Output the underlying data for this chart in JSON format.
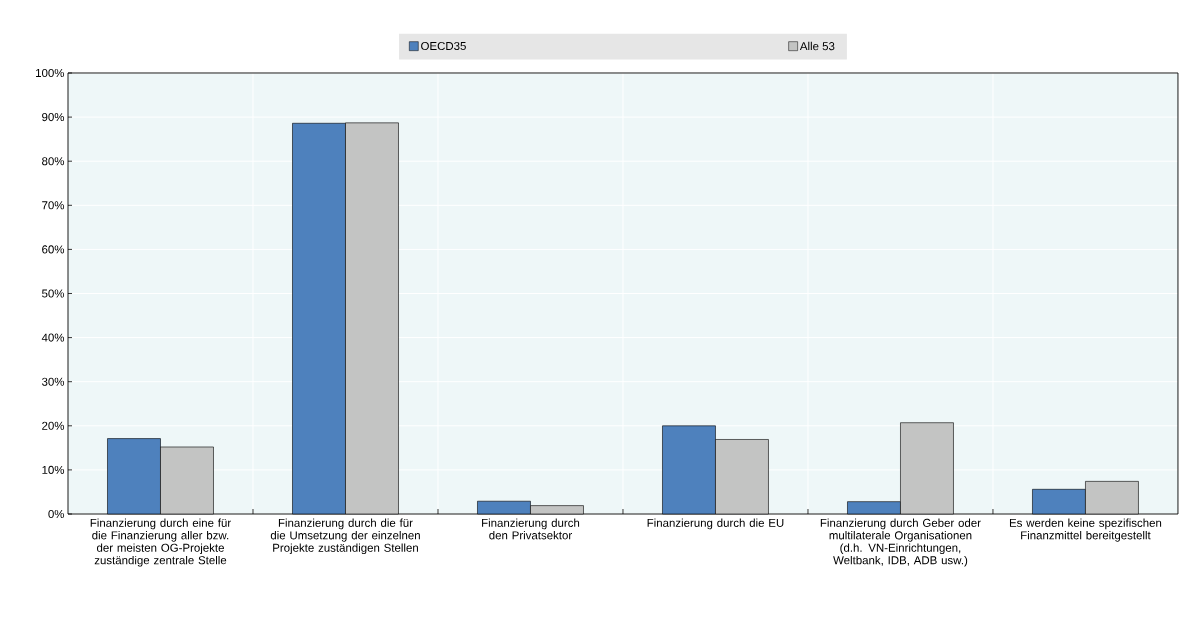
{
  "chart_data": {
    "type": "bar",
    "categories": [
      "Finanzierung durch eine für die Finanzierung aller bzw. der meisten OG-Projekte zuständige zentrale Stelle",
      "Finanzierung durch die für die Umsetzung der einzelnen Projekte zuständigen Stellen",
      "Finanzierung durch den Privatsektor",
      "Finanzierung durch die EU",
      "Finanzierung durch Geber oder multilaterale Organisationen (d.h. VN-Einrichtungen, Weltbank, IDB, ADB usw.)",
      "Es werden keine spezifischen Finanzmittel bereitgestellt"
    ],
    "series": [
      {
        "name": "OECD35",
        "color": "#4e81bd",
        "values": [
          17.1,
          88.6,
          2.9,
          20.0,
          2.8,
          5.6
        ]
      },
      {
        "name": "Alle 53",
        "color": "#c3c4c3",
        "values": [
          15.2,
          88.7,
          1.9,
          16.9,
          20.7,
          7.4
        ]
      }
    ],
    "ylim": [
      0,
      100
    ],
    "yticks": [
      {
        "value": 0,
        "label": "0%"
      },
      {
        "value": 10,
        "label": "10%"
      },
      {
        "value": 20,
        "label": "20%"
      },
      {
        "value": 30,
        "label": "30%"
      },
      {
        "value": 40,
        "label": "40%"
      },
      {
        "value": 50,
        "label": "50%"
      },
      {
        "value": 60,
        "label": "60%"
      },
      {
        "value": 70,
        "label": "70%"
      },
      {
        "value": 80,
        "label": "80%"
      },
      {
        "value": 90,
        "label": "90%"
      },
      {
        "value": 100,
        "label": "100%"
      }
    ],
    "grid": true,
    "legend": "top"
  }
}
